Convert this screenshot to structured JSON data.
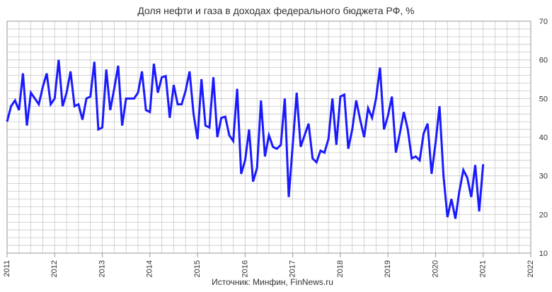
{
  "chart_data": {
    "type": "line",
    "title": "Доля нефти и газа в доходах федерального бюджета РФ, %",
    "source": "Источник: Минфин, FinNews.ru",
    "xlabel": "",
    "ylabel": "",
    "xlim": [
      2011,
      2022
    ],
    "ylim": [
      10,
      70
    ],
    "x_ticks": [
      "2011",
      "2012",
      "2013",
      "2014",
      "2015",
      "2016",
      "2017",
      "2018",
      "2019",
      "2020",
      "2021",
      "2022"
    ],
    "y_ticks": [
      "10",
      "20",
      "30",
      "40",
      "50",
      "60",
      "70"
    ],
    "grid": true,
    "legend": "none",
    "colors": {
      "line": "#1a1aff",
      "grid": "#c8c8c8",
      "axis": "#999999"
    },
    "series": [
      {
        "values": [
          44,
          48,
          49.5,
          47,
          56.5,
          43,
          51.5,
          50,
          48.5,
          53,
          56.5,
          48.5,
          50,
          60,
          48,
          51.5,
          57,
          48,
          48.5,
          44.5,
          50,
          50.5,
          59.5,
          42,
          42.5,
          57.5,
          47,
          52.5,
          58.5,
          43,
          50,
          50,
          50,
          51.5,
          57,
          47,
          46.5,
          59,
          51.5,
          55.5,
          55.8,
          45,
          53.5,
          48.5,
          48.5,
          52,
          57,
          46,
          39.5,
          55,
          43,
          42.5,
          55.5,
          40,
          45,
          45.3,
          40.5,
          39,
          52.5,
          30.5,
          34,
          42,
          28.5,
          32,
          49.5,
          35,
          40.5,
          37.5,
          37,
          38,
          50,
          24.5,
          38,
          51.5,
          37.5,
          40.5,
          43.5,
          34.5,
          33.5,
          36.5,
          36,
          39.5,
          50,
          38,
          50.5,
          51,
          37,
          42,
          49.5,
          44.5,
          40,
          47.5,
          45,
          50,
          58,
          42,
          45.5,
          50.5,
          36,
          41,
          46.5,
          42,
          34.5,
          35,
          34,
          41,
          43.5,
          30.5,
          38.5,
          48,
          30,
          19.3,
          24,
          18.9,
          26,
          31.5,
          29.5,
          24.5,
          32.8,
          20.8,
          33
        ]
      }
    ]
  }
}
